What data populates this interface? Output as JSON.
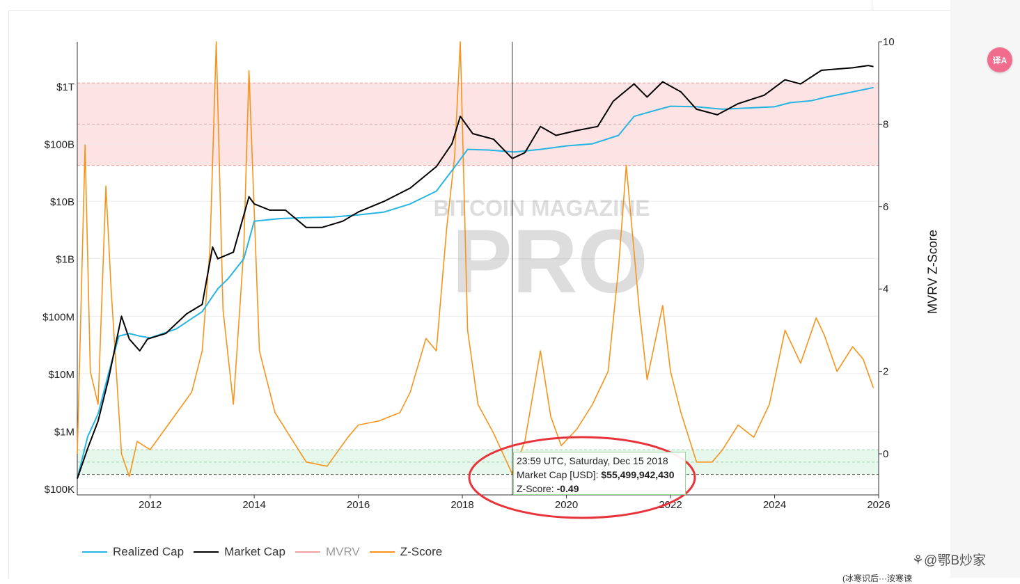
{
  "page": {
    "translate_badge": "译A",
    "footer_watermark": "⚘@鄂B炒家",
    "footer_snippet": "(冰寒识后···洝寒谏"
  },
  "chart_data": {
    "type": "line",
    "title": "",
    "watermark_line1": "BITCOIN MAGAZINE",
    "watermark_line2": "PRO",
    "y_axis_left": {
      "scale": "log",
      "range": [
        100000,
        10000000000000
      ],
      "tick_labels": [
        "$100K",
        "$1M",
        "$10M",
        "$100M",
        "$1B",
        "$10B",
        "$100B",
        "$1T"
      ],
      "tick_values": [
        100000,
        1000000,
        10000000,
        100000000,
        1000000000,
        10000000000,
        100000000000,
        1000000000000
      ]
    },
    "y_axis_right": {
      "label": "MVRV Z-Score",
      "range": [
        -1,
        10
      ],
      "tick_values": [
        0,
        2,
        4,
        6,
        8,
        10
      ],
      "tick_labels": [
        "0",
        "2",
        "4",
        "6",
        "8",
        "10"
      ]
    },
    "x_axis": {
      "range": [
        2010.6,
        2026.0
      ],
      "tick_values": [
        2012,
        2014,
        2016,
        2018,
        2020,
        2022,
        2024,
        2026
      ],
      "tick_labels": [
        "2012",
        "2014",
        "2016",
        "2018",
        "2020",
        "2022",
        "2024",
        "2026"
      ]
    },
    "bands": {
      "upper_zone_zscore": [
        7,
        9
      ],
      "lower_zone_zscore": [
        -0.5,
        0.1
      ]
    },
    "series": [
      {
        "name": "Realized Cap",
        "color": "#26b5e3",
        "axis": "left",
        "x": [
          2010.6,
          2010.8,
          2011.0,
          2011.2,
          2011.4,
          2011.6,
          2011.8,
          2012.0,
          2012.5,
          2013.0,
          2013.3,
          2013.5,
          2013.8,
          2014.0,
          2014.5,
          2015.0,
          2015.5,
          2016.0,
          2016.5,
          2017.0,
          2017.5,
          2017.9,
          2018.1,
          2018.5,
          2019.0,
          2019.5,
          2020.0,
          2020.5,
          2021.0,
          2021.3,
          2021.7,
          2022.0,
          2022.5,
          2023.0,
          2023.5,
          2024.0,
          2024.3,
          2024.7,
          2025.0,
          2025.5,
          2025.9
        ],
        "values": [
          150000,
          800000,
          2000000,
          10000000,
          45000000,
          50000000,
          45000000,
          42000000,
          60000000,
          120000000,
          300000000,
          450000000,
          1000000000,
          4500000000,
          5000000000,
          5200000000,
          5300000000,
          5800000000,
          6500000000,
          9000000000,
          15000000000,
          45000000000,
          80000000000,
          78000000000,
          72000000000,
          80000000000,
          92000000000,
          100000000000,
          140000000000,
          300000000000,
          380000000000,
          450000000000,
          440000000000,
          400000000000,
          420000000000,
          440000000000,
          520000000000,
          560000000000,
          650000000000,
          800000000000,
          950000000000
        ]
      },
      {
        "name": "Market Cap",
        "color": "#000000",
        "axis": "left",
        "x": [
          2010.6,
          2010.8,
          2011.0,
          2011.2,
          2011.45,
          2011.6,
          2011.8,
          2011.95,
          2012.3,
          2012.7,
          2013.0,
          2013.2,
          2013.3,
          2013.6,
          2013.9,
          2014.0,
          2014.3,
          2014.6,
          2015.0,
          2015.3,
          2015.7,
          2016.0,
          2016.5,
          2017.0,
          2017.5,
          2017.8,
          2017.96,
          2018.2,
          2018.6,
          2018.96,
          2019.2,
          2019.5,
          2019.8,
          2020.2,
          2020.6,
          2020.9,
          2021.3,
          2021.55,
          2021.85,
          2022.2,
          2022.5,
          2022.9,
          2023.3,
          2023.8,
          2024.2,
          2024.5,
          2024.9,
          2025.2,
          2025.5,
          2025.8,
          2025.9
        ],
        "values": [
          150000,
          500000,
          1500000,
          8000000,
          100000000,
          40000000,
          25000000,
          40000000,
          50000000,
          110000000,
          160000000,
          1600000000,
          1000000000,
          1300000000,
          12000000000,
          9000000000,
          7000000000,
          7000000000,
          3500000000,
          3500000000,
          4500000000,
          6500000000,
          10000000000,
          17000000000,
          40000000000,
          100000000000,
          300000000000,
          150000000000,
          120000000000,
          55499942430,
          70000000000,
          200000000000,
          140000000000,
          170000000000,
          200000000000,
          550000000000,
          1100000000000,
          650000000000,
          1200000000000,
          800000000000,
          400000000000,
          320000000000,
          500000000000,
          700000000000,
          1300000000000,
          1100000000000,
          1900000000000,
          2000000000000,
          2100000000000,
          2300000000000,
          2200000000000
        ]
      },
      {
        "name": "MVRV",
        "color": "#f2a0a0",
        "axis": "right",
        "x": [],
        "values": []
      },
      {
        "name": "Z-Score",
        "color": "#f7931a",
        "axis": "right",
        "x": [
          2010.6,
          2010.75,
          2010.85,
          2011.0,
          2011.15,
          2011.25,
          2011.45,
          2011.6,
          2011.75,
          2012.0,
          2012.4,
          2012.8,
          2013.0,
          2013.15,
          2013.27,
          2013.4,
          2013.6,
          2013.8,
          2013.9,
          2014.1,
          2014.4,
          2014.8,
          2015.0,
          2015.4,
          2015.8,
          2016.0,
          2016.4,
          2016.8,
          2017.0,
          2017.3,
          2017.5,
          2017.7,
          2017.85,
          2017.96,
          2018.1,
          2018.3,
          2018.6,
          2018.96,
          2019.2,
          2019.5,
          2019.7,
          2019.9,
          2020.2,
          2020.5,
          2020.8,
          2021.0,
          2021.15,
          2021.4,
          2021.55,
          2021.85,
          2022.0,
          2022.2,
          2022.5,
          2022.8,
          2023.0,
          2023.3,
          2023.6,
          2023.9,
          2024.2,
          2024.5,
          2024.8,
          2024.95,
          2025.2,
          2025.5,
          2025.7,
          2025.9
        ],
        "values": [
          0.0,
          7.5,
          2.0,
          1.2,
          6.5,
          4.0,
          0.0,
          -0.55,
          0.3,
          0.1,
          0.8,
          1.5,
          2.5,
          5.0,
          10.0,
          3.5,
          1.2,
          5.0,
          9.3,
          2.5,
          1.0,
          0.2,
          -0.2,
          -0.3,
          0.4,
          0.7,
          0.8,
          1.0,
          1.5,
          2.8,
          2.5,
          5.5,
          7.2,
          10.0,
          3.0,
          1.2,
          0.5,
          -0.49,
          0.3,
          2.5,
          0.9,
          0.2,
          0.6,
          1.2,
          2.0,
          4.5,
          7.0,
          3.5,
          1.8,
          3.6,
          2.0,
          1.0,
          -0.2,
          -0.2,
          0.1,
          0.7,
          0.4,
          1.2,
          3.0,
          2.2,
          3.3,
          2.9,
          2.0,
          2.6,
          2.3,
          1.6
        ]
      }
    ],
    "crosshair_x": 2018.96,
    "tooltip": {
      "date": "23:59 UTC, Saturday, Dec 15 2018",
      "market_cap_label": "Market Cap [USD]:",
      "market_cap_value": "$55,499,942,430",
      "zscore_label": "Z-Score:",
      "zscore_value": "-0.49"
    },
    "legend_position": "bottom-left"
  }
}
